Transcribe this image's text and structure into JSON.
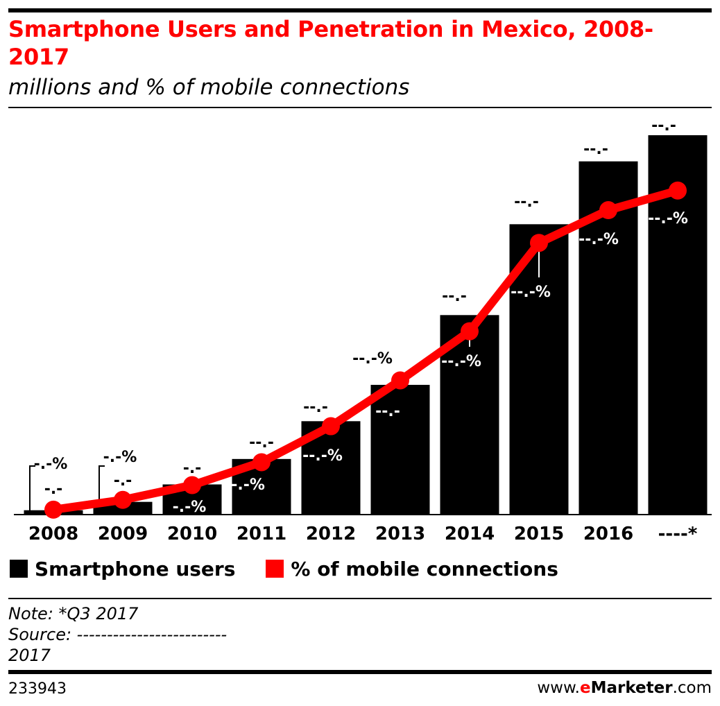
{
  "header": {
    "title": "Smartphone Users and Penetration in Mexico, 2008-2017",
    "subtitle": "millions and % of mobile connections"
  },
  "legend": {
    "users_label": "Smartphone users",
    "penetration_label": "% of mobile connections"
  },
  "notes": {
    "note": "Note: *Q3 2017",
    "source_line1": "Source: -------------------------",
    "source_line2": "2017"
  },
  "footer": {
    "chart_id": "233943",
    "brand_prefix": "www.",
    "brand_e": "e",
    "brand_name": "Marketer",
    "brand_suffix": ".com"
  },
  "colors": {
    "bar": "#000000",
    "line": "#ff0000",
    "title": "#ff0000"
  },
  "chart_data": {
    "type": "bar",
    "title": "Smartphone Users and Penetration in Mexico, 2008-2017",
    "subtitle": "millions and % of mobile connections",
    "categories": [
      "2008",
      "2009",
      "2010",
      "2011",
      "2012",
      "2013",
      "2014",
      "2015",
      "2016",
      "----*"
    ],
    "series": [
      {
        "name": "Smartphone users",
        "kind": "bar",
        "values": [
          1.2,
          3.5,
          8.3,
          15.3,
          25.7,
          35.7,
          54.9,
          79.9,
          97.2,
          104.4
        ],
        "labels": [
          "-.-",
          "-.-",
          "-.-",
          "--.-",
          "--.-",
          "--.-",
          "--.-",
          "--.-",
          "--.-",
          "--.-"
        ]
      },
      {
        "name": "% of mobile connections",
        "kind": "line",
        "values": [
          1.5,
          4.5,
          9.0,
          16.0,
          27.0,
          41.0,
          56.0,
          83.0,
          93.0,
          99.0
        ],
        "labels": [
          "-.-%",
          "-.-%",
          "-.-%",
          "--.-%",
          "--.-%",
          "--.-%",
          "--.-%",
          "--.-%",
          "--.-%",
          "--.-%"
        ]
      }
    ],
    "legend_position": "bottom-left",
    "grid": false
  }
}
